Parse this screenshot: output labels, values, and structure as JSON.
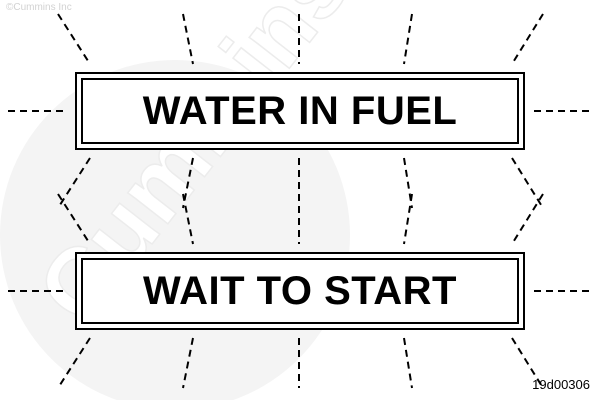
{
  "watermark": {
    "copyright": "©Cummins Inc",
    "logo_text": "Cummins"
  },
  "indicators": [
    {
      "label": "WATER IN FUEL"
    },
    {
      "label": "WAIT TO START"
    }
  ],
  "figure_id": "19d00306",
  "colors": {
    "ink": "#000000",
    "watermark": "#e6e6e6",
    "background": "#ffffff"
  }
}
